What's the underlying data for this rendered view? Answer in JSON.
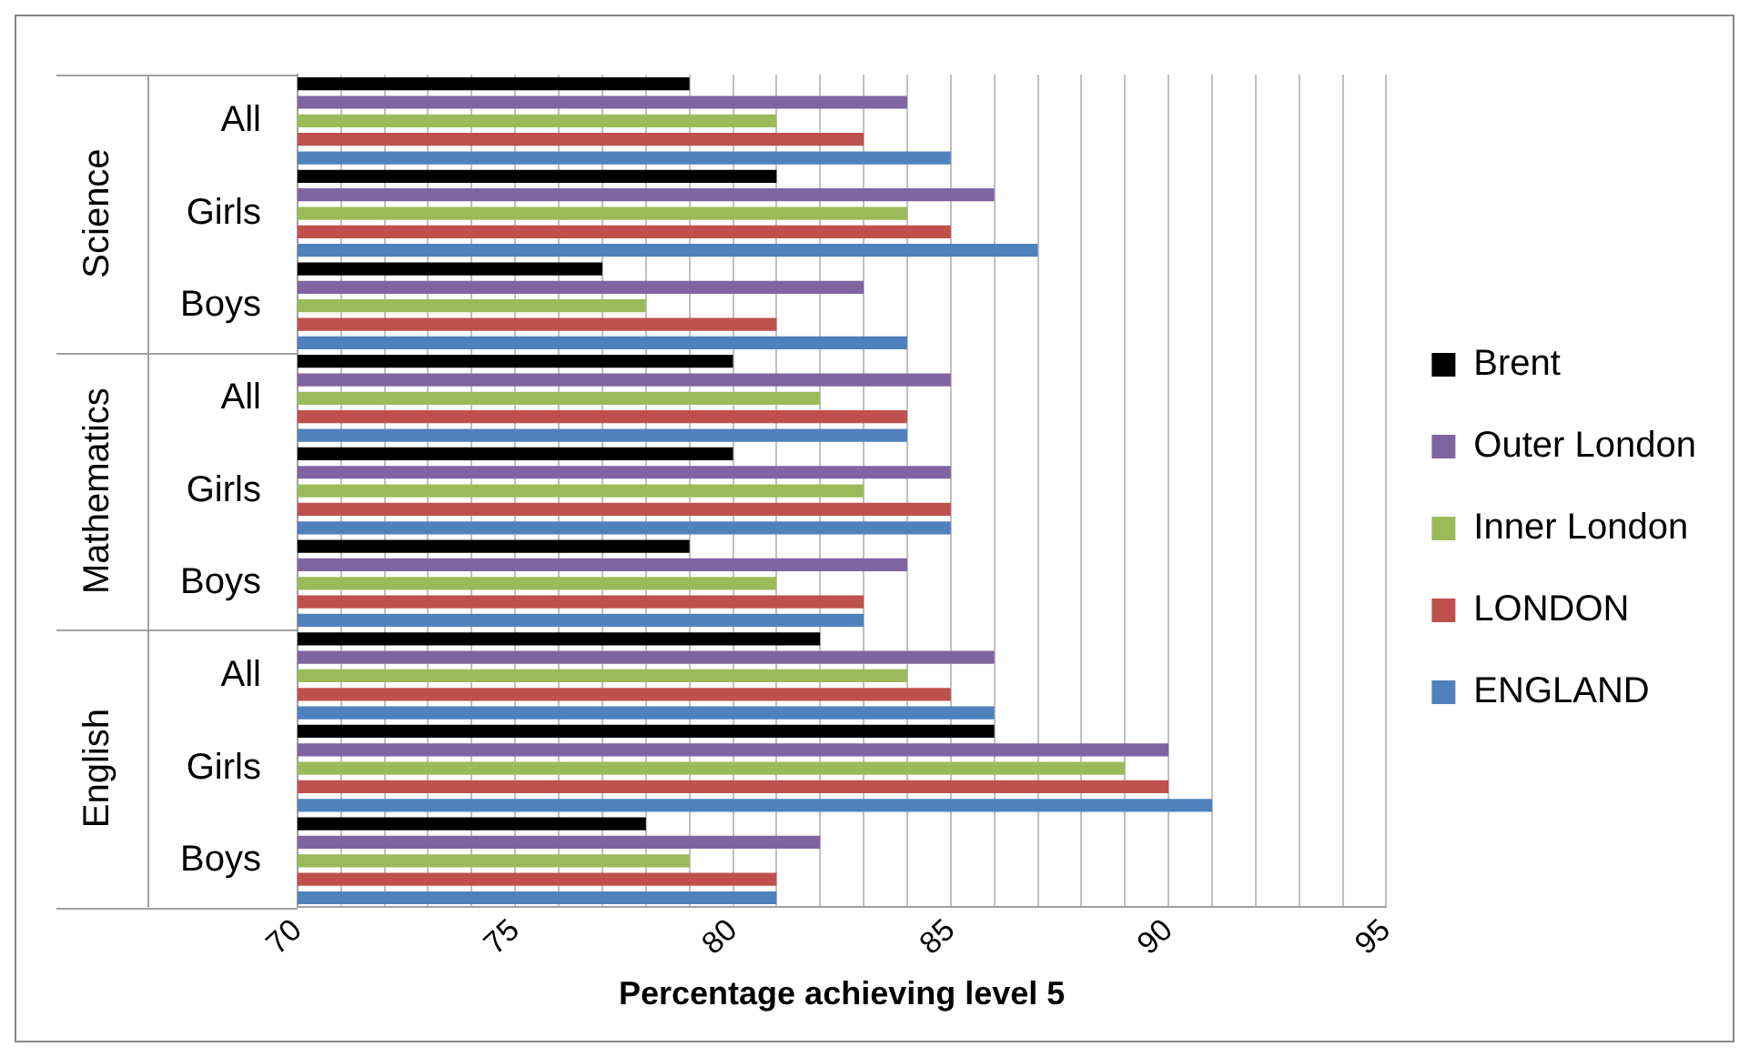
{
  "chart_data": {
    "type": "bar",
    "orientation": "horizontal",
    "xlabel": "Percentage achieving level 5",
    "categories": [
      "All",
      "Girls",
      "Boys",
      "All",
      "Girls",
      "Boys",
      "All",
      "Girls",
      "Boys"
    ],
    "annotations": [
      "Science",
      "Mathematics",
      "English"
    ],
    "series": [
      {
        "name": "Brent",
        "color": "#000000",
        "values": [
          79,
          81,
          77,
          80,
          80,
          79,
          82,
          86,
          78
        ]
      },
      {
        "name": "Outer London",
        "color": "#8064a2",
        "values": [
          84,
          86,
          83,
          85,
          85,
          84,
          86,
          90,
          82
        ]
      },
      {
        "name": "Inner London",
        "color": "#9bbb59",
        "values": [
          81,
          84,
          78,
          82,
          83,
          81,
          84,
          89,
          79
        ]
      },
      {
        "name": "LONDON",
        "color": "#c0504d",
        "values": [
          83,
          85,
          81,
          84,
          85,
          83,
          85,
          90,
          81
        ]
      },
      {
        "name": "ENGLAND",
        "color": "#4f81bd",
        "values": [
          85,
          87,
          84,
          84,
          85,
          83,
          86,
          91,
          81
        ]
      }
    ],
    "xlim": [
      70,
      95
    ],
    "xticks": [
      70,
      {
        "value": 71,
        "label": null
      },
      {
        "value": 72,
        "label": null
      },
      {
        "value": 73,
        "label": null
      },
      {
        "value": 74,
        "label": null
      },
      75,
      {
        "value": 76,
        "label": null
      },
      {
        "value": 77,
        "label": null
      },
      {
        "value": 78,
        "label": null
      },
      {
        "value": 79,
        "label": null
      },
      80,
      {
        "value": 81,
        "label": null
      },
      {
        "value": 82,
        "label": null
      },
      {
        "value": 83,
        "label": null
      },
      {
        "value": 84,
        "label": null
      },
      85,
      {
        "value": 86,
        "label": null
      },
      {
        "value": 87,
        "label": null
      },
      {
        "value": 88,
        "label": null
      },
      {
        "value": 89,
        "label": null
      },
      90,
      {
        "value": 91,
        "label": null
      },
      {
        "value": 92,
        "label": null
      },
      {
        "value": 93,
        "label": null
      },
      {
        "value": 94,
        "label": null
      },
      95
    ],
    "grid": "x",
    "legend": "right"
  }
}
